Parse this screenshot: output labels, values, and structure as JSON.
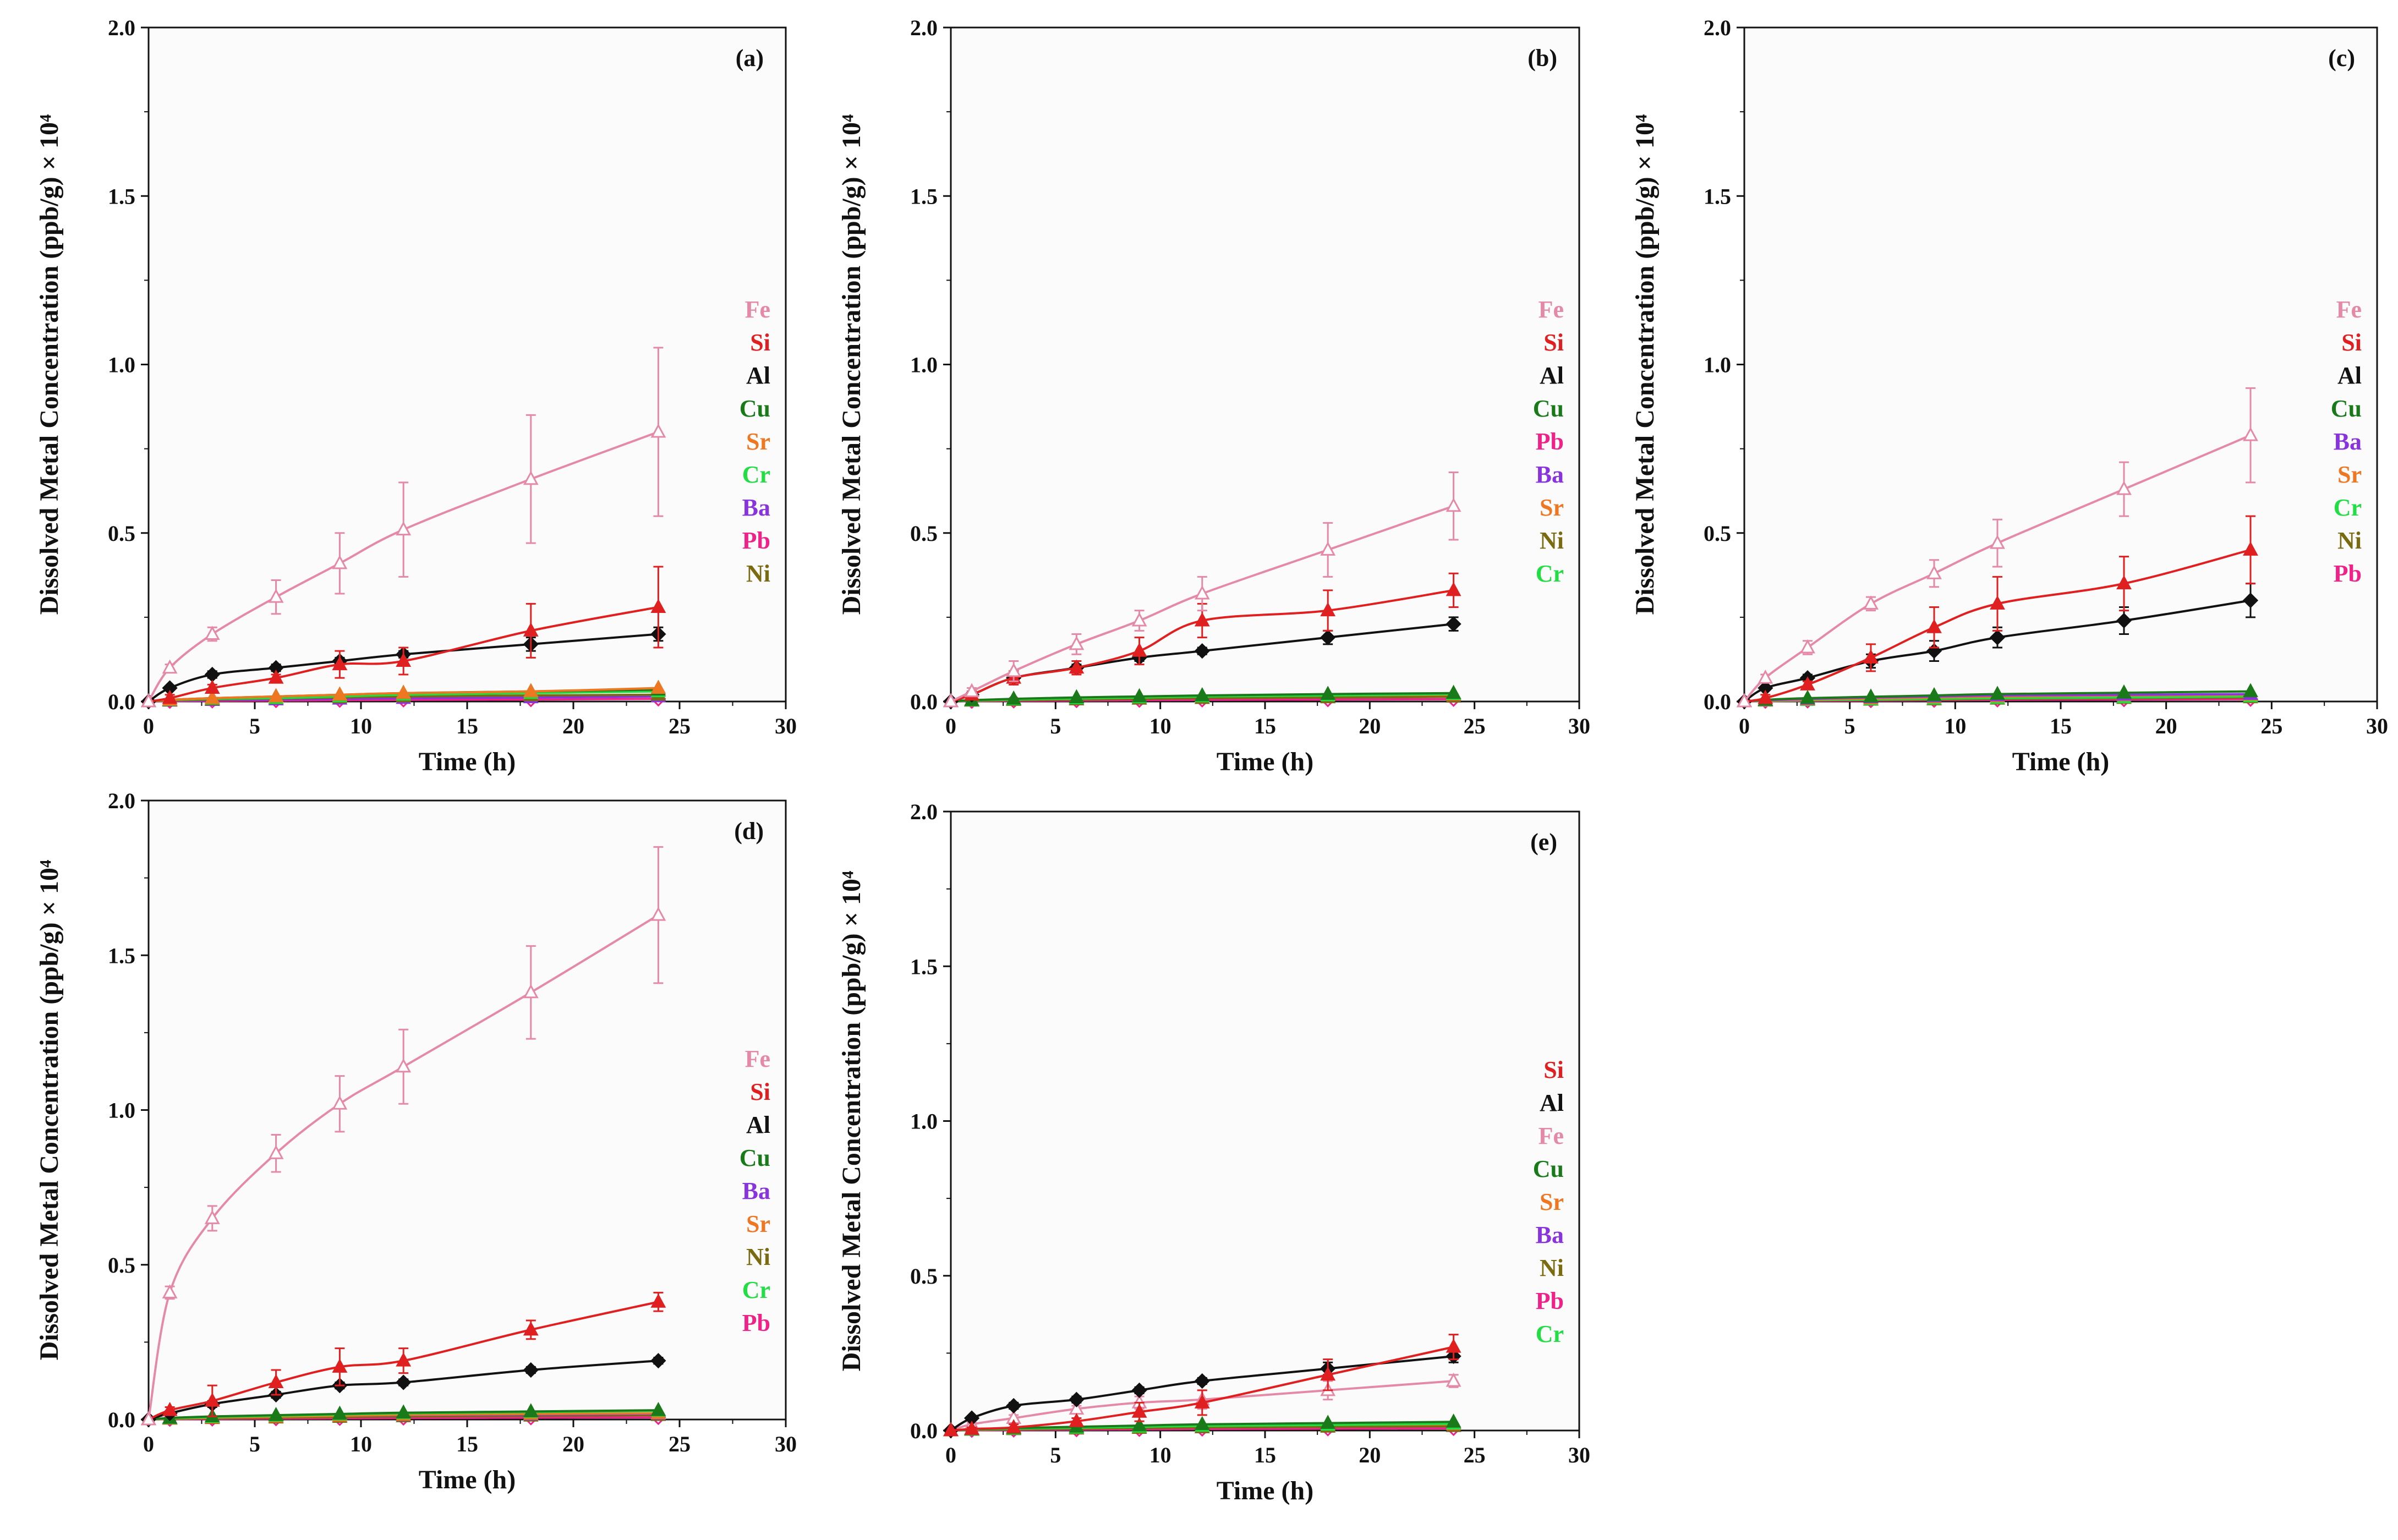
{
  "figure": {
    "y_axis_label": "Dissolved Metal Concentration (ppb/g) × 10⁴"
  },
  "colors": {
    "Fe": "#e58aa6",
    "Si": "#e02020",
    "Al": "#111111",
    "Cu": "#1a7a1a",
    "Sr": "#ee7722",
    "Cr": "#22dd44",
    "Ba": "#8833dd",
    "Pb": "#ee2288",
    "Ni": "#7a6a10"
  },
  "chart_data": [
    {
      "type": "line",
      "label": "(a)",
      "xlabel": "Time (h)",
      "ylabel": "Dissolved Metal Concentration (ppb/g) × 10⁴",
      "xlim": [
        0,
        30
      ],
      "ylim": [
        0,
        2.0
      ],
      "xticks": [
        "0",
        "5",
        "10",
        "15",
        "20",
        "25",
        "30"
      ],
      "yticks": [
        "0.0",
        "0.5",
        "1.0",
        "1.5",
        "2.0"
      ],
      "x": [
        0,
        1,
        3,
        6,
        9,
        12,
        18,
        24
      ],
      "legend": [
        "Fe",
        "Si",
        "Al",
        "Cu",
        "Sr",
        "Cr",
        "Ba",
        "Pb",
        "Ni"
      ],
      "series": [
        {
          "name": "Fe",
          "marker": "triangle-open",
          "values": [
            0,
            0.1,
            0.2,
            0.31,
            0.41,
            0.51,
            0.66,
            0.8
          ],
          "errors": [
            0,
            0.01,
            0.02,
            0.05,
            0.09,
            0.14,
            0.19,
            0.25
          ]
        },
        {
          "name": "Si",
          "marker": "triangle",
          "values": [
            0,
            0.01,
            0.04,
            0.07,
            0.11,
            0.12,
            0.21,
            0.28
          ],
          "errors": [
            0,
            0.01,
            0.01,
            0.01,
            0.04,
            0.04,
            0.08,
            0.12
          ]
        },
        {
          "name": "Al",
          "marker": "diamond",
          "values": [
            0,
            0.04,
            0.08,
            0.1,
            0.12,
            0.14,
            0.17,
            0.2
          ],
          "errors": [
            0,
            0.005,
            0.01,
            0.01,
            0.01,
            0.01,
            0.02,
            0.02
          ]
        },
        {
          "name": "Cu",
          "marker": "triangle",
          "values": [
            0,
            0.005,
            0.01,
            0.015,
            0.02,
            0.025,
            0.03,
            0.035
          ],
          "errors": []
        },
        {
          "name": "Sr",
          "marker": "triangle",
          "values": [
            0,
            0.005,
            0.01,
            0.015,
            0.02,
            0.025,
            0.03,
            0.04
          ],
          "errors": []
        },
        {
          "name": "Cr",
          "marker": "triangle",
          "values": [
            0,
            0.004,
            0.008,
            0.01,
            0.015,
            0.02,
            0.025,
            0.03
          ],
          "errors": []
        },
        {
          "name": "Ba",
          "marker": "triangle",
          "values": [
            0,
            0.002,
            0.004,
            0.006,
            0.008,
            0.01,
            0.012,
            0.015
          ],
          "errors": []
        },
        {
          "name": "Pb",
          "marker": "diamond-open",
          "values": [
            0,
            0.001,
            0.002,
            0.003,
            0.004,
            0.005,
            0.006,
            0.008
          ],
          "errors": []
        },
        {
          "name": "Ni",
          "marker": "triangle",
          "values": [
            0,
            0.003,
            0.006,
            0.009,
            0.012,
            0.015,
            0.018,
            0.02
          ],
          "errors": []
        }
      ]
    },
    {
      "type": "line",
      "label": "(b)",
      "xlabel": "Time (h)",
      "ylabel": "Dissolved Metal Concentration (ppb/g) × 10⁴",
      "xlim": [
        0,
        30
      ],
      "ylim": [
        0,
        2.0
      ],
      "xticks": [
        "0",
        "5",
        "10",
        "15",
        "20",
        "25",
        "30"
      ],
      "yticks": [
        "0.0",
        "0.5",
        "1.0",
        "1.5",
        "2.0"
      ],
      "x": [
        0,
        1,
        3,
        6,
        9,
        12,
        18,
        24
      ],
      "legend": [
        "Fe",
        "Si",
        "Al",
        "Cu",
        "Pb",
        "Ba",
        "Sr",
        "Ni",
        "Cr"
      ],
      "series": [
        {
          "name": "Fe",
          "marker": "triangle-open",
          "values": [
            0,
            0.03,
            0.09,
            0.17,
            0.24,
            0.32,
            0.45,
            0.58
          ],
          "errors": [
            0,
            0.01,
            0.03,
            0.03,
            0.03,
            0.05,
            0.08,
            0.1
          ]
        },
        {
          "name": "Si",
          "marker": "triangle",
          "values": [
            0,
            0.02,
            0.07,
            0.1,
            0.15,
            0.24,
            0.27,
            0.33
          ],
          "errors": [
            0,
            0.01,
            0.02,
            0.02,
            0.04,
            0.05,
            0.06,
            0.05
          ]
        },
        {
          "name": "Al",
          "marker": "diamond",
          "values": [
            0,
            0.02,
            0.07,
            0.1,
            0.13,
            0.15,
            0.19,
            0.23
          ],
          "errors": [
            0,
            0.005,
            0.01,
            0.01,
            0.01,
            0.01,
            0.02,
            0.02
          ]
        },
        {
          "name": "Cu",
          "marker": "triangle",
          "values": [
            0,
            0.004,
            0.008,
            0.012,
            0.015,
            0.018,
            0.022,
            0.025
          ],
          "errors": []
        },
        {
          "name": "Pb",
          "marker": "diamond-open",
          "values": [
            0,
            0.001,
            0.002,
            0.003,
            0.004,
            0.005,
            0.006,
            0.007
          ],
          "errors": []
        },
        {
          "name": "Ba",
          "marker": "triangle",
          "values": [
            0,
            0.002,
            0.004,
            0.006,
            0.008,
            0.01,
            0.012,
            0.014
          ],
          "errors": []
        },
        {
          "name": "Sr",
          "marker": "triangle",
          "values": [
            0,
            0.003,
            0.006,
            0.009,
            0.012,
            0.015,
            0.018,
            0.02
          ],
          "errors": []
        },
        {
          "name": "Ni",
          "marker": "triangle",
          "values": [
            0,
            0.002,
            0.004,
            0.006,
            0.008,
            0.01,
            0.012,
            0.014
          ],
          "errors": []
        },
        {
          "name": "Cr",
          "marker": "triangle",
          "values": [
            0,
            0.003,
            0.006,
            0.009,
            0.012,
            0.015,
            0.018,
            0.022
          ],
          "errors": []
        }
      ]
    },
    {
      "type": "line",
      "label": "(c)",
      "xlabel": "Time (h)",
      "ylabel": "Dissolved Metal Concentration (ppb/g) × 10⁴",
      "xlim": [
        0,
        30
      ],
      "ylim": [
        0,
        2.0
      ],
      "xticks": [
        "0",
        "5",
        "10",
        "15",
        "20",
        "25",
        "30"
      ],
      "yticks": [
        "0.0",
        "0.5",
        "1.0",
        "1.5",
        "2.0"
      ],
      "x": [
        0,
        1,
        3,
        6,
        9,
        12,
        18,
        24
      ],
      "legend": [
        "Fe",
        "Si",
        "Al",
        "Cu",
        "Ba",
        "Sr",
        "Cr",
        "Ni",
        "Pb"
      ],
      "series": [
        {
          "name": "Fe",
          "marker": "triangle-open",
          "values": [
            0,
            0.07,
            0.16,
            0.29,
            0.38,
            0.47,
            0.63,
            0.79
          ],
          "errors": [
            0,
            0.01,
            0.02,
            0.02,
            0.04,
            0.07,
            0.08,
            0.14
          ]
        },
        {
          "name": "Si",
          "marker": "triangle",
          "values": [
            0,
            0.01,
            0.05,
            0.13,
            0.22,
            0.29,
            0.35,
            0.45
          ],
          "errors": [
            0,
            0.01,
            0.01,
            0.04,
            0.06,
            0.08,
            0.08,
            0.1
          ]
        },
        {
          "name": "Al",
          "marker": "diamond",
          "values": [
            0,
            0.04,
            0.07,
            0.12,
            0.15,
            0.19,
            0.24,
            0.3
          ],
          "errors": [
            0,
            0.005,
            0.01,
            0.02,
            0.03,
            0.03,
            0.04,
            0.05
          ]
        },
        {
          "name": "Cu",
          "marker": "triangle",
          "values": [
            0,
            0.005,
            0.01,
            0.014,
            0.018,
            0.022,
            0.026,
            0.03
          ],
          "errors": []
        },
        {
          "name": "Ba",
          "marker": "triangle",
          "values": [
            0,
            0.004,
            0.008,
            0.012,
            0.015,
            0.018,
            0.02,
            0.022
          ],
          "errors": []
        },
        {
          "name": "Sr",
          "marker": "triangle",
          "values": [
            0,
            0.003,
            0.006,
            0.009,
            0.012,
            0.015,
            0.018,
            0.02
          ],
          "errors": []
        },
        {
          "name": "Cr",
          "marker": "triangle",
          "values": [
            0,
            0.002,
            0.004,
            0.006,
            0.008,
            0.01,
            0.012,
            0.015
          ],
          "errors": []
        },
        {
          "name": "Ni",
          "marker": "triangle",
          "values": [
            0,
            0.002,
            0.004,
            0.005,
            0.006,
            0.008,
            0.01,
            0.012
          ],
          "errors": []
        },
        {
          "name": "Pb",
          "marker": "diamond-open",
          "values": [
            0,
            0.001,
            0.002,
            0.003,
            0.004,
            0.005,
            0.006,
            0.007
          ],
          "errors": []
        }
      ]
    },
    {
      "type": "line",
      "label": "(d)",
      "xlabel": "Time (h)",
      "ylabel": "Dissolved Metal Concentration (ppb/g) × 10⁴",
      "xlim": [
        0,
        30
      ],
      "ylim": [
        0,
        2.0
      ],
      "xticks": [
        "0",
        "5",
        "10",
        "15",
        "20",
        "25",
        "30"
      ],
      "yticks": [
        "0.0",
        "0.5",
        "1.0",
        "1.5",
        "2.0"
      ],
      "x": [
        0,
        1,
        3,
        6,
        9,
        12,
        18,
        24
      ],
      "legend": [
        "Fe",
        "Si",
        "Al",
        "Cu",
        "Ba",
        "Sr",
        "Ni",
        "Cr",
        "Pb"
      ],
      "series": [
        {
          "name": "Fe",
          "marker": "triangle-open",
          "values": [
            0,
            0.41,
            0.65,
            0.86,
            1.02,
            1.14,
            1.38,
            1.63
          ],
          "errors": [
            0,
            0.02,
            0.04,
            0.06,
            0.09,
            0.12,
            0.15,
            0.22
          ]
        },
        {
          "name": "Si",
          "marker": "triangle",
          "values": [
            0,
            0.03,
            0.06,
            0.12,
            0.17,
            0.19,
            0.29,
            0.38
          ],
          "errors": [
            0,
            0.01,
            0.05,
            0.04,
            0.06,
            0.04,
            0.03,
            0.03
          ]
        },
        {
          "name": "Al",
          "marker": "diamond",
          "values": [
            0,
            0.02,
            0.05,
            0.08,
            0.11,
            0.12,
            0.16,
            0.19
          ],
          "errors": [
            0,
            0.005,
            0.01,
            0.01,
            0.01,
            0.01,
            0.01,
            0.01
          ]
        },
        {
          "name": "Cu",
          "marker": "triangle",
          "values": [
            0,
            0.005,
            0.01,
            0.014,
            0.018,
            0.022,
            0.026,
            0.03
          ],
          "errors": []
        },
        {
          "name": "Ba",
          "marker": "triangle",
          "values": [
            0,
            0.003,
            0.006,
            0.009,
            0.012,
            0.014,
            0.016,
            0.018
          ],
          "errors": []
        },
        {
          "name": "Sr",
          "marker": "triangle",
          "values": [
            0,
            0.003,
            0.006,
            0.009,
            0.012,
            0.015,
            0.018,
            0.02
          ],
          "errors": []
        },
        {
          "name": "Ni",
          "marker": "triangle",
          "values": [
            0,
            0.002,
            0.004,
            0.006,
            0.008,
            0.01,
            0.012,
            0.014
          ],
          "errors": []
        },
        {
          "name": "Cr",
          "marker": "triangle",
          "values": [
            0,
            0.004,
            0.008,
            0.012,
            0.016,
            0.02,
            0.024,
            0.028
          ],
          "errors": []
        },
        {
          "name": "Pb",
          "marker": "diamond-open",
          "values": [
            0,
            0.001,
            0.002,
            0.003,
            0.004,
            0.005,
            0.006,
            0.007
          ],
          "errors": []
        }
      ]
    },
    {
      "type": "line",
      "label": "(e)",
      "xlabel": "Time (h)",
      "ylabel": "Dissolved Metal Concentration (ppb/g) × 10⁴",
      "xlim": [
        0,
        30
      ],
      "ylim": [
        0,
        2.0
      ],
      "xticks": [
        "0",
        "5",
        "10",
        "15",
        "20",
        "25",
        "30"
      ],
      "yticks": [
        "0.0",
        "0.5",
        "1.0",
        "1.5",
        "2.0"
      ],
      "x": [
        0,
        1,
        3,
        6,
        9,
        12,
        18,
        24
      ],
      "legend": [
        "Si",
        "Al",
        "Fe",
        "Cu",
        "Sr",
        "Ba",
        "Ni",
        "Pb",
        "Cr"
      ],
      "series": [
        {
          "name": "Si",
          "marker": "triangle",
          "values": [
            0,
            0.005,
            0.01,
            0.03,
            0.06,
            0.09,
            0.18,
            0.27
          ],
          "errors": [
            0,
            0.005,
            0.01,
            0.01,
            0.03,
            0.04,
            0.05,
            0.04
          ]
        },
        {
          "name": "Al",
          "marker": "diamond",
          "values": [
            0,
            0.04,
            0.08,
            0.1,
            0.13,
            0.16,
            0.2,
            0.24
          ],
          "errors": [
            0,
            0.005,
            0.01,
            0.01,
            0.01,
            0.01,
            0.02,
            0.02
          ]
        },
        {
          "name": "Fe",
          "marker": "triangle-open",
          "values": [
            0,
            0.02,
            0.04,
            0.07,
            0.09,
            0.1,
            0.13,
            0.16
          ],
          "errors": [
            0,
            0.005,
            0.01,
            0.01,
            0.02,
            0.03,
            0.03,
            0.02
          ]
        },
        {
          "name": "Cu",
          "marker": "triangle",
          "values": [
            0,
            0.004,
            0.008,
            0.012,
            0.016,
            0.02,
            0.024,
            0.028
          ],
          "errors": []
        },
        {
          "name": "Sr",
          "marker": "triangle",
          "values": [
            0,
            0.003,
            0.006,
            0.009,
            0.012,
            0.015,
            0.018,
            0.02
          ],
          "errors": []
        },
        {
          "name": "Ba",
          "marker": "triangle",
          "values": [
            0,
            0.002,
            0.004,
            0.006,
            0.008,
            0.01,
            0.012,
            0.014
          ],
          "errors": []
        },
        {
          "name": "Ni",
          "marker": "triangle",
          "values": [
            0,
            0.002,
            0.004,
            0.006,
            0.008,
            0.01,
            0.012,
            0.014
          ],
          "errors": []
        },
        {
          "name": "Pb",
          "marker": "diamond-open",
          "values": [
            0,
            0.001,
            0.002,
            0.003,
            0.004,
            0.005,
            0.006,
            0.007
          ],
          "errors": []
        },
        {
          "name": "Cr",
          "marker": "triangle",
          "values": [
            0,
            0.003,
            0.006,
            0.009,
            0.012,
            0.015,
            0.018,
            0.022
          ],
          "errors": []
        }
      ]
    }
  ]
}
